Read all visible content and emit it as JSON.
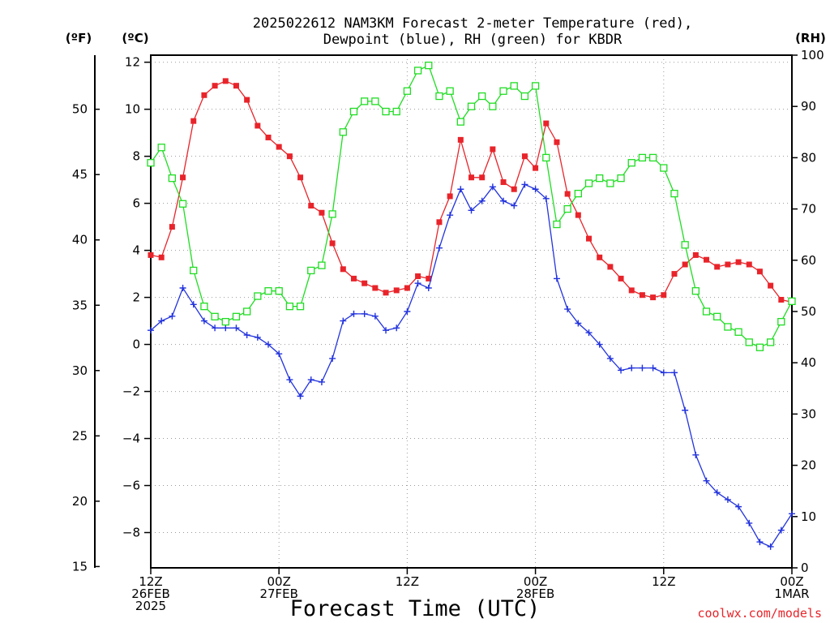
{
  "chart_data": {
    "type": "line",
    "title_lines": [
      "2025022612 NAM3KM Forecast 2-meter Temperature (red),",
      "Dewpoint (blue), RH (green) for KBDR"
    ],
    "xlabel": "Forecast Time (UTC)",
    "credit": "coolwx.com/models",
    "unit_labels": {
      "left_f": "(ºF)",
      "left_c": "(ºC)",
      "right_rh": "(RH)"
    },
    "left_c_axis": {
      "range": [
        -9.5,
        12.3
      ],
      "ticks": [
        -8,
        -6,
        -4,
        -2,
        0,
        2,
        4,
        6,
        8,
        10,
        12
      ]
    },
    "left_f_axis": {
      "range": [
        14.9,
        54.14
      ],
      "ticks": [
        15,
        20,
        25,
        30,
        35,
        40,
        45,
        50
      ]
    },
    "right_rh_axis": {
      "range": [
        0,
        100
      ],
      "ticks": [
        0,
        10,
        20,
        30,
        40,
        50,
        60,
        70,
        80,
        90,
        100
      ]
    },
    "x_axis": {
      "range_hours": [
        0,
        60
      ],
      "ticks": [
        {
          "hour": 0,
          "lines": [
            "12Z",
            "26FEB",
            "2025"
          ]
        },
        {
          "hour": 12,
          "lines": [
            "00Z",
            "27FEB"
          ]
        },
        {
          "hour": 24,
          "lines": [
            "12Z"
          ]
        },
        {
          "hour": 36,
          "lines": [
            "00Z",
            "28FEB"
          ]
        },
        {
          "hour": 48,
          "lines": [
            "12Z"
          ]
        },
        {
          "hour": 60,
          "lines": [
            "00Z",
            "1MAR"
          ]
        }
      ]
    },
    "grid": true,
    "series": [
      {
        "name": "Temperature",
        "color": "#e8242a",
        "marker": "filled-square",
        "axis": "celsius",
        "x": [
          0,
          1,
          2,
          3,
          4,
          5,
          6,
          7,
          8,
          9,
          10,
          11,
          12,
          13,
          14,
          15,
          16,
          17,
          18,
          19,
          20,
          21,
          22,
          23,
          24,
          25,
          26,
          27,
          28,
          29,
          30,
          31,
          32,
          33,
          34,
          35,
          36,
          37,
          38,
          39,
          40,
          41,
          42,
          43,
          44,
          45,
          46,
          47,
          48,
          49,
          50,
          51,
          52,
          53,
          54,
          55,
          56,
          57,
          58,
          59,
          60
        ],
        "values": [
          3.8,
          3.7,
          5.0,
          7.1,
          9.5,
          10.6,
          11.0,
          11.2,
          11.0,
          10.4,
          9.3,
          8.8,
          8.4,
          8.0,
          7.1,
          5.9,
          5.6,
          4.3,
          3.2,
          2.8,
          2.6,
          2.4,
          2.2,
          2.3,
          2.4,
          2.9,
          2.8,
          5.2,
          6.3,
          8.7,
          7.1,
          7.1,
          8.3,
          6.9,
          6.6,
          8.0,
          7.5,
          9.4,
          8.6,
          6.4,
          5.5,
          4.5,
          3.7,
          3.3,
          2.8,
          2.3,
          2.1,
          2.0,
          2.1,
          3.0,
          3.4,
          3.8,
          3.6,
          3.3,
          3.4,
          3.5,
          3.4,
          3.1,
          2.5,
          1.9,
          1.8
        ]
      },
      {
        "name": "Dewpoint",
        "color": "#2233dd",
        "marker": "plus",
        "axis": "celsius",
        "x": [
          0,
          1,
          2,
          3,
          4,
          5,
          6,
          7,
          8,
          9,
          10,
          11,
          12,
          13,
          14,
          15,
          16,
          17,
          18,
          19,
          20,
          21,
          22,
          23,
          24,
          25,
          26,
          27,
          28,
          29,
          30,
          31,
          32,
          33,
          34,
          35,
          36,
          37,
          38,
          39,
          40,
          41,
          42,
          43,
          44,
          45,
          46,
          47,
          48,
          49,
          50,
          51,
          52,
          53,
          54,
          55,
          56,
          57,
          58,
          59,
          60
        ],
        "values": [
          0.6,
          1.0,
          1.2,
          2.4,
          1.7,
          1.0,
          0.7,
          0.7,
          0.7,
          0.4,
          0.3,
          0.0,
          -0.4,
          -1.5,
          -2.2,
          -1.5,
          -1.6,
          -0.6,
          1.0,
          1.3,
          1.3,
          1.2,
          0.6,
          0.7,
          1.4,
          2.6,
          2.4,
          4.1,
          5.5,
          6.6,
          5.7,
          6.1,
          6.7,
          6.1,
          5.9,
          6.8,
          6.6,
          6.2,
          2.8,
          1.5,
          0.9,
          0.5,
          0.0,
          -0.6,
          -1.1,
          -1.0,
          -1.0,
          -1.0,
          -1.2,
          -1.2,
          -2.8,
          -4.7,
          -5.8,
          -6.3,
          -6.6,
          -6.9,
          -7.6,
          -8.4,
          -8.6,
          -7.9,
          -7.2
        ]
      },
      {
        "name": "RH",
        "color": "#1fdd22",
        "marker": "open-square",
        "axis": "rh",
        "x": [
          0,
          1,
          2,
          3,
          4,
          5,
          6,
          7,
          8,
          9,
          10,
          11,
          12,
          13,
          14,
          15,
          16,
          17,
          18,
          19,
          20,
          21,
          22,
          23,
          24,
          25,
          26,
          27,
          28,
          29,
          30,
          31,
          32,
          33,
          34,
          35,
          36,
          37,
          38,
          39,
          40,
          41,
          42,
          43,
          44,
          45,
          46,
          47,
          48,
          49,
          50,
          51,
          52,
          53,
          54,
          55,
          56,
          57,
          58,
          59,
          60
        ],
        "values": [
          79,
          82,
          76,
          71,
          58,
          51,
          49,
          48,
          49,
          50,
          53,
          54,
          54,
          51,
          51,
          58,
          59,
          69,
          85,
          89,
          91,
          91,
          89,
          89,
          93,
          97,
          98,
          92,
          93,
          87,
          90,
          92,
          90,
          93,
          94,
          92,
          94,
          80,
          67,
          70,
          73,
          75,
          76,
          75,
          76,
          79,
          80,
          80,
          78,
          73,
          63,
          54,
          50,
          49,
          47,
          46,
          44,
          43,
          44,
          48,
          52
        ]
      }
    ]
  }
}
